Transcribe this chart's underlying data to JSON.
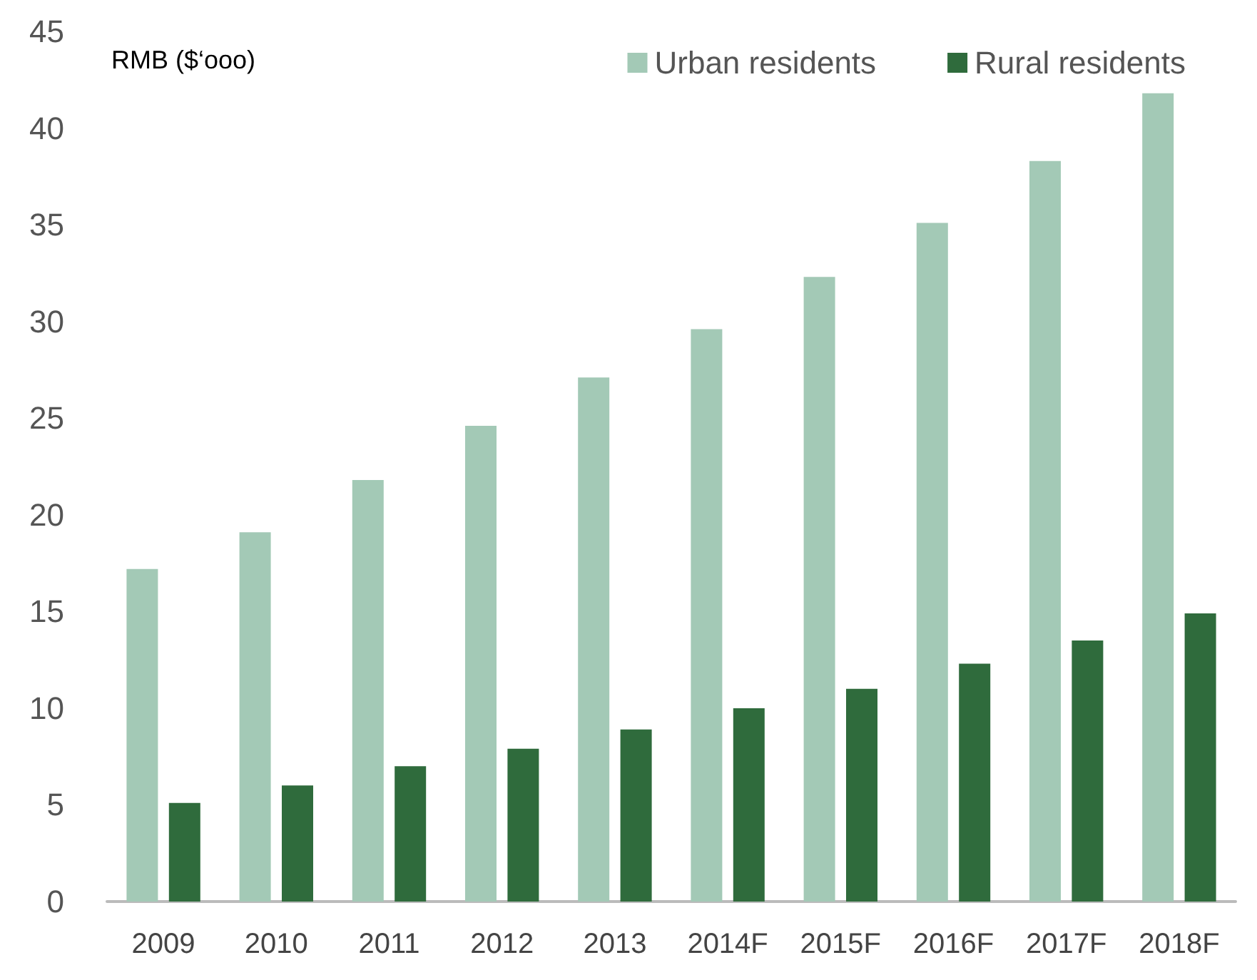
{
  "chart_data": {
    "type": "bar",
    "ylabel": "RMB ($‘ooo)",
    "categories": [
      "2009",
      "2010",
      "2011",
      "2012",
      "2013",
      "2014F",
      "2015F",
      "2016F",
      "2017F",
      "2018F"
    ],
    "series": [
      {
        "name": "Urban residents",
        "color": "#a3c9b6",
        "values": [
          17.2,
          19.1,
          21.8,
          24.6,
          27.1,
          29.6,
          32.3,
          35.1,
          38.3,
          41.8
        ]
      },
      {
        "name": "Rural residents",
        "color": "#2f6b3c",
        "values": [
          5.1,
          6.0,
          7.0,
          7.9,
          8.9,
          10.0,
          11.0,
          12.3,
          13.5,
          14.9
        ]
      }
    ],
    "ylim": [
      0,
      45
    ],
    "yticks": [
      0,
      5,
      10,
      15,
      20,
      25,
      30,
      35,
      40,
      45
    ],
    "grid": false,
    "legend": "top right"
  }
}
